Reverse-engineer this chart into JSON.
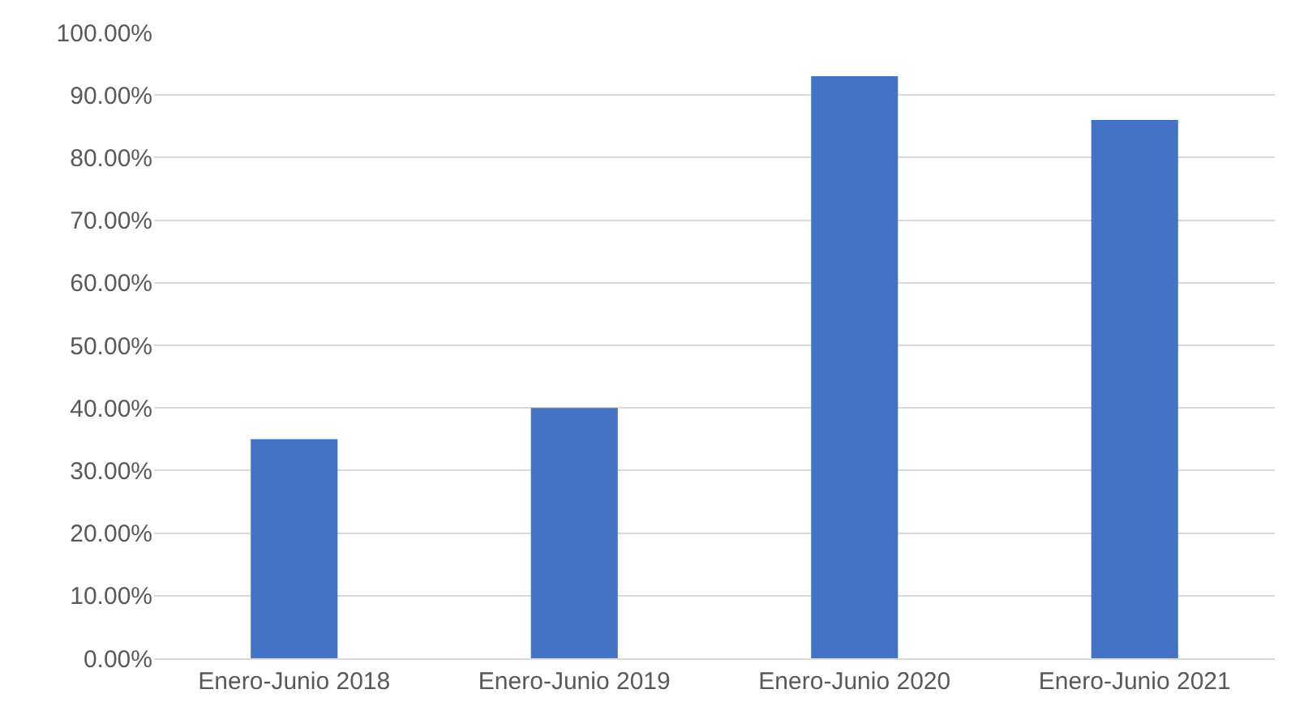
{
  "chart_data": {
    "type": "bar",
    "categories": [
      "Enero-Junio 2018",
      "Enero-Junio 2019",
      "Enero-Junio 2020",
      "Enero-Junio 2021"
    ],
    "values": [
      35,
      40,
      93,
      86
    ],
    "color": "#4472c4",
    "ylim": [
      0,
      100
    ],
    "yticks": [
      {
        "value": 0,
        "label": "0.00%"
      },
      {
        "value": 10,
        "label": "10.00%"
      },
      {
        "value": 20,
        "label": "20.00%"
      },
      {
        "value": 30,
        "label": "30.00%"
      },
      {
        "value": 40,
        "label": "40.00%"
      },
      {
        "value": 50,
        "label": "50.00%"
      },
      {
        "value": 60,
        "label": "60.00%"
      },
      {
        "value": 70,
        "label": "70.00%"
      },
      {
        "value": 80,
        "label": "80.00%"
      },
      {
        "value": 90,
        "label": "90.00%"
      },
      {
        "value": 100,
        "label": "100.00%"
      }
    ],
    "grid": "y"
  }
}
